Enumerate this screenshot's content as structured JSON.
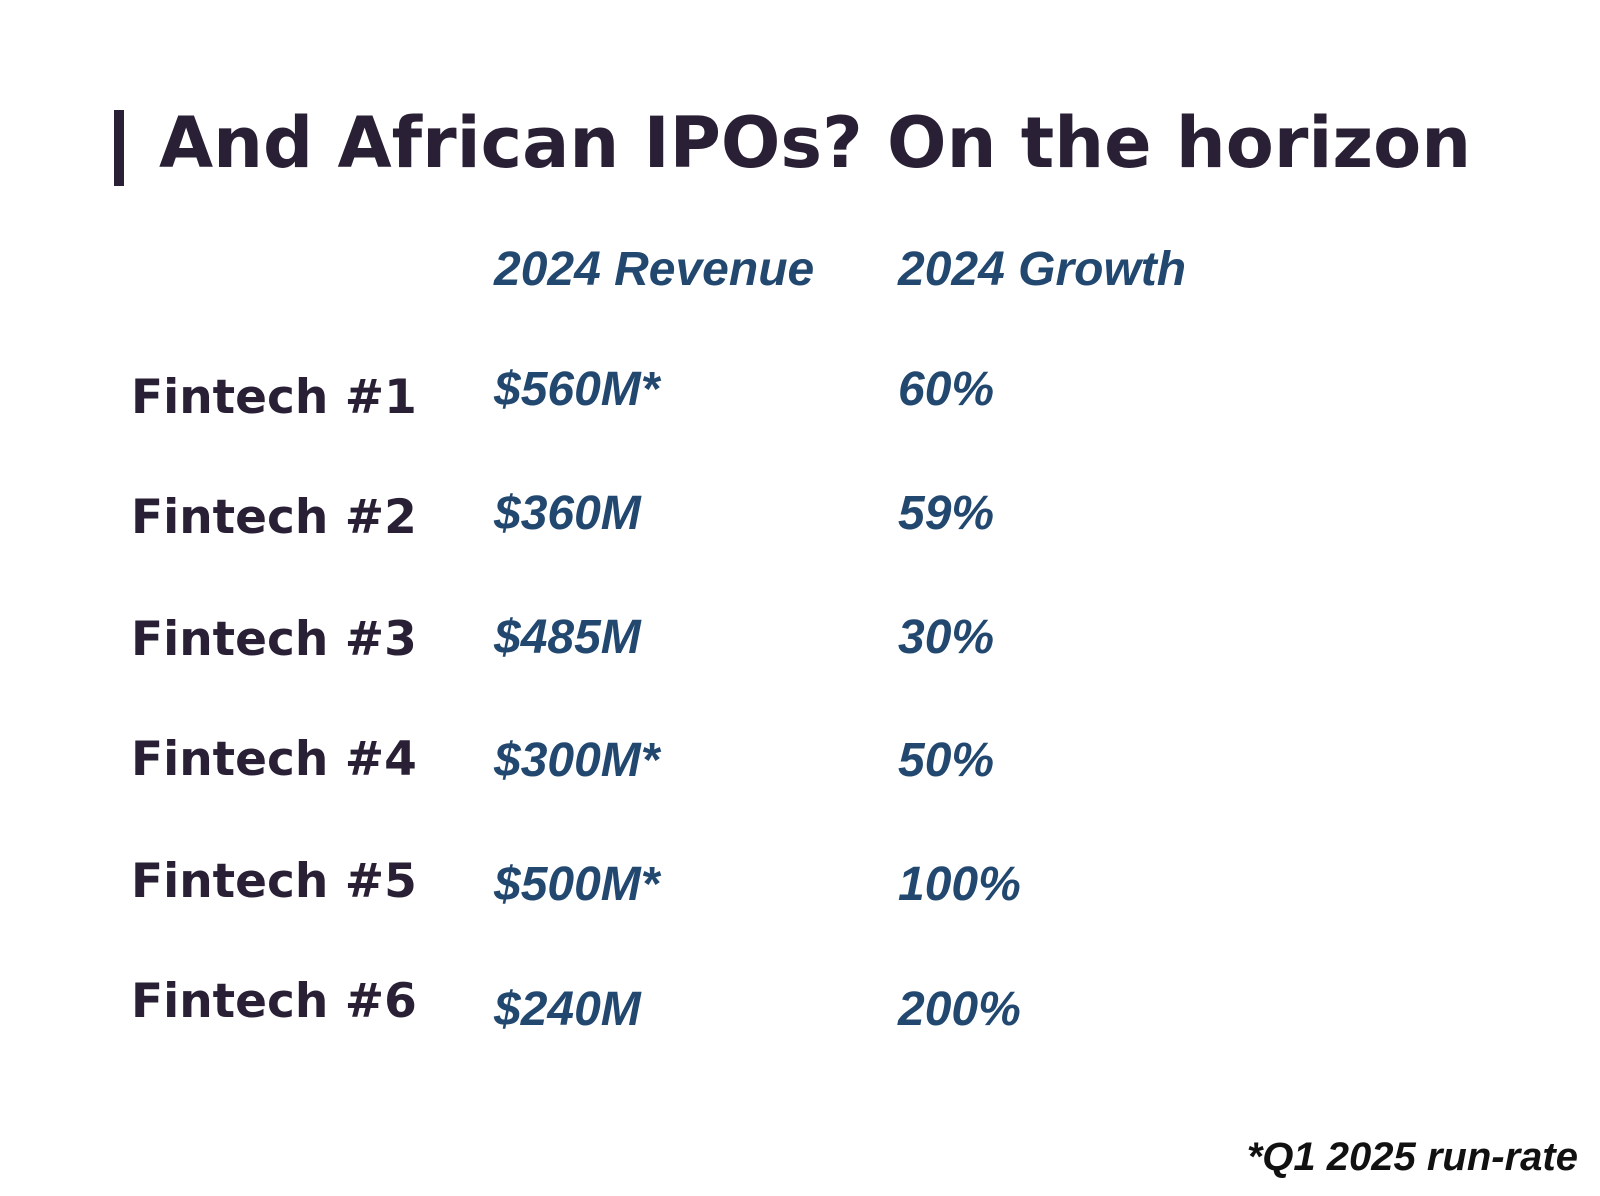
{
  "slide": {
    "title_bar_glyph": "|",
    "title": "And African IPOs?  On the horizon",
    "footnote": "*Q1 2025 run-rate"
  },
  "chart_data": {
    "type": "table",
    "title": "And African IPOs?  On the horizon",
    "columns": [
      "2024 Revenue",
      "2024 Growth"
    ],
    "rows": [
      {
        "label": "Fintech #1",
        "revenue": "$560M*",
        "growth": "60%"
      },
      {
        "label": "Fintech #2",
        "revenue": "$360M",
        "growth": "59%"
      },
      {
        "label": "Fintech #3",
        "revenue": "$485M",
        "growth": "30%"
      },
      {
        "label": "Fintech #4",
        "revenue": "$300M*",
        "growth": "50%"
      },
      {
        "label": "Fintech #5",
        "revenue": "$500M*",
        "growth": "100%"
      },
      {
        "label": "Fintech #6",
        "revenue": "$240M",
        "growth": "200%"
      }
    ],
    "footnote": "*Q1 2025 run-rate"
  },
  "colors": {
    "title": "#2a2036",
    "label": "#2a2036",
    "value": "#224870",
    "footnote": "#111111",
    "background": "#ffffff"
  }
}
